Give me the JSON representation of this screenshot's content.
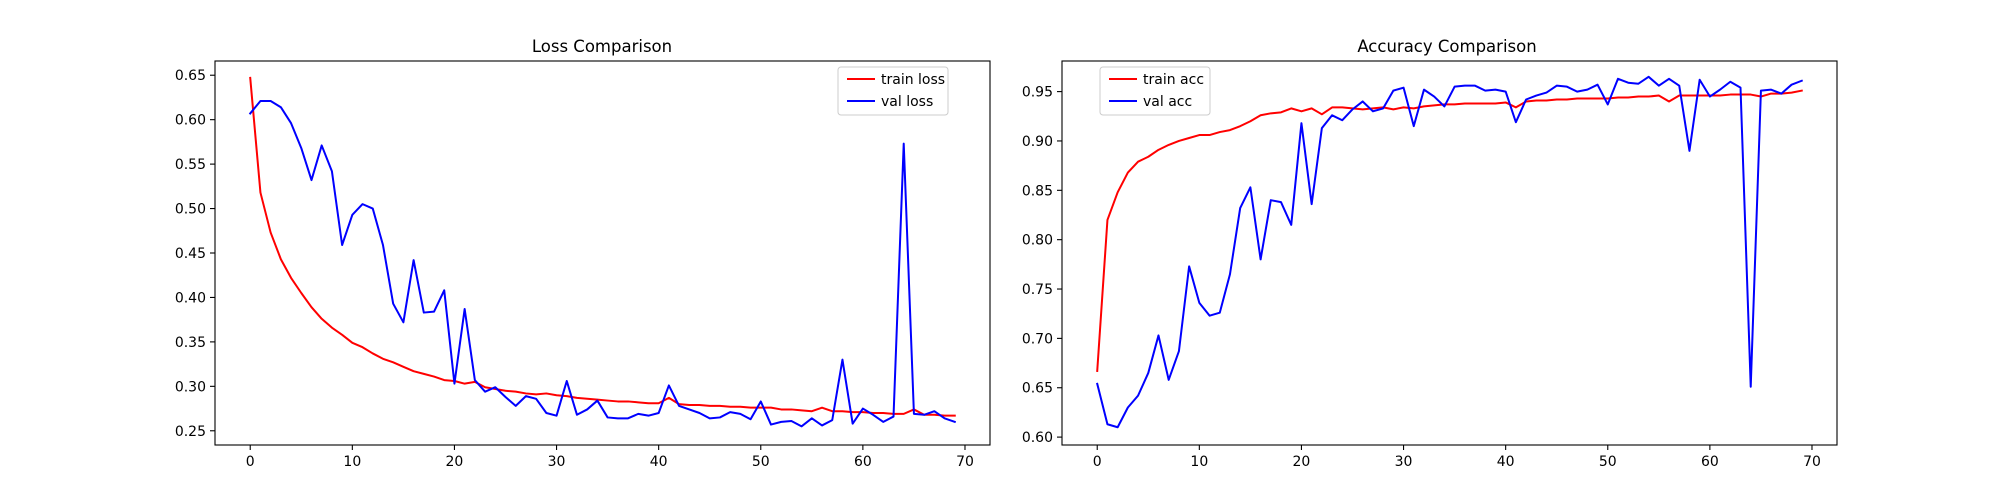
{
  "chart_data": [
    {
      "type": "line",
      "title": "Loss Comparison",
      "xlabel": "",
      "ylabel": "",
      "xlim": [
        -3.45,
        72.45
      ],
      "ylim": [
        0.234,
        0.666
      ],
      "xticks": [
        0,
        10,
        20,
        30,
        40,
        50,
        60,
        70
      ],
      "yticks": [
        0.25,
        0.3,
        0.35,
        0.4,
        0.45,
        0.5,
        0.55,
        0.6,
        0.65
      ],
      "ytick_decimals": 2,
      "legend": "top-right",
      "grid": false,
      "x": [
        0,
        1,
        2,
        3,
        4,
        5,
        6,
        7,
        8,
        9,
        10,
        11,
        12,
        13,
        14,
        15,
        16,
        17,
        18,
        19,
        20,
        21,
        22,
        23,
        24,
        25,
        26,
        27,
        28,
        29,
        30,
        31,
        32,
        33,
        34,
        35,
        36,
        37,
        38,
        39,
        40,
        41,
        42,
        43,
        44,
        45,
        46,
        47,
        48,
        49,
        50,
        51,
        52,
        53,
        54,
        55,
        56,
        57,
        58,
        59,
        60,
        61,
        62,
        63,
        64,
        65,
        66,
        67,
        68,
        69
      ],
      "series": [
        {
          "name": "train loss",
          "color": "#ff0000",
          "values": [
            0.647,
            0.518,
            0.473,
            0.443,
            0.422,
            0.405,
            0.389,
            0.376,
            0.366,
            0.358,
            0.349,
            0.344,
            0.337,
            0.331,
            0.327,
            0.322,
            0.317,
            0.314,
            0.311,
            0.307,
            0.306,
            0.303,
            0.305,
            0.299,
            0.297,
            0.295,
            0.294,
            0.292,
            0.291,
            0.292,
            0.29,
            0.289,
            0.287,
            0.286,
            0.285,
            0.284,
            0.283,
            0.283,
            0.282,
            0.281,
            0.281,
            0.287,
            0.28,
            0.279,
            0.279,
            0.278,
            0.278,
            0.277,
            0.277,
            0.276,
            0.276,
            0.276,
            0.274,
            0.274,
            0.273,
            0.272,
            0.276,
            0.272,
            0.272,
            0.271,
            0.271,
            0.27,
            0.27,
            0.269,
            0.269,
            0.274,
            0.268,
            0.268,
            0.267,
            0.267
          ]
        },
        {
          "name": "val loss",
          "color": "#0000ff",
          "values": [
            0.607,
            0.621,
            0.621,
            0.614,
            0.596,
            0.568,
            0.532,
            0.571,
            0.542,
            0.459,
            0.493,
            0.505,
            0.5,
            0.459,
            0.393,
            0.372,
            0.442,
            0.383,
            0.384,
            0.408,
            0.303,
            0.387,
            0.307,
            0.294,
            0.299,
            0.288,
            0.278,
            0.289,
            0.286,
            0.27,
            0.267,
            0.306,
            0.268,
            0.274,
            0.284,
            0.265,
            0.264,
            0.264,
            0.269,
            0.267,
            0.27,
            0.301,
            0.278,
            0.274,
            0.27,
            0.264,
            0.265,
            0.271,
            0.269,
            0.263,
            0.283,
            0.257,
            0.26,
            0.261,
            0.255,
            0.264,
            0.256,
            0.262,
            0.33,
            0.258,
            0.275,
            0.268,
            0.26,
            0.266,
            0.573,
            0.269,
            0.268,
            0.272,
            0.264,
            0.26
          ]
        }
      ]
    },
    {
      "type": "line",
      "title": "Accuracy Comparison",
      "xlabel": "",
      "ylabel": "",
      "xlim": [
        -3.45,
        72.45
      ],
      "ylim": [
        0.592,
        0.981
      ],
      "xticks": [
        0,
        10,
        20,
        30,
        40,
        50,
        60,
        70
      ],
      "yticks": [
        0.6,
        0.65,
        0.7,
        0.75,
        0.8,
        0.85,
        0.9,
        0.95
      ],
      "ytick_decimals": 2,
      "legend": "top-left",
      "grid": false,
      "x": [
        0,
        1,
        2,
        3,
        4,
        5,
        6,
        7,
        8,
        9,
        10,
        11,
        12,
        13,
        14,
        15,
        16,
        17,
        18,
        19,
        20,
        21,
        22,
        23,
        24,
        25,
        26,
        27,
        28,
        29,
        30,
        31,
        32,
        33,
        34,
        35,
        36,
        37,
        38,
        39,
        40,
        41,
        42,
        43,
        44,
        45,
        46,
        47,
        48,
        49,
        50,
        51,
        52,
        53,
        54,
        55,
        56,
        57,
        58,
        59,
        60,
        61,
        62,
        63,
        64,
        65,
        66,
        67,
        68,
        69
      ],
      "series": [
        {
          "name": "train acc",
          "color": "#ff0000",
          "values": [
            0.667,
            0.82,
            0.848,
            0.868,
            0.879,
            0.884,
            0.891,
            0.896,
            0.9,
            0.903,
            0.906,
            0.906,
            0.909,
            0.911,
            0.915,
            0.92,
            0.926,
            0.928,
            0.929,
            0.933,
            0.93,
            0.933,
            0.927,
            0.934,
            0.934,
            0.933,
            0.932,
            0.933,
            0.934,
            0.932,
            0.934,
            0.933,
            0.935,
            0.936,
            0.937,
            0.937,
            0.938,
            0.938,
            0.938,
            0.938,
            0.939,
            0.934,
            0.94,
            0.941,
            0.941,
            0.942,
            0.942,
            0.943,
            0.943,
            0.943,
            0.943,
            0.944,
            0.944,
            0.945,
            0.945,
            0.946,
            0.94,
            0.946,
            0.946,
            0.946,
            0.946,
            0.946,
            0.947,
            0.947,
            0.947,
            0.945,
            0.948,
            0.948,
            0.949,
            0.951
          ]
        },
        {
          "name": "val acc",
          "color": "#0000ff",
          "values": [
            0.654,
            0.613,
            0.61,
            0.63,
            0.642,
            0.665,
            0.703,
            0.658,
            0.687,
            0.773,
            0.736,
            0.723,
            0.726,
            0.765,
            0.832,
            0.853,
            0.78,
            0.84,
            0.838,
            0.815,
            0.918,
            0.836,
            0.913,
            0.926,
            0.921,
            0.932,
            0.94,
            0.93,
            0.933,
            0.951,
            0.954,
            0.915,
            0.952,
            0.945,
            0.935,
            0.955,
            0.956,
            0.956,
            0.951,
            0.952,
            0.95,
            0.919,
            0.942,
            0.946,
            0.949,
            0.956,
            0.955,
            0.95,
            0.952,
            0.957,
            0.937,
            0.963,
            0.959,
            0.958,
            0.965,
            0.956,
            0.963,
            0.956,
            0.89,
            0.962,
            0.945,
            0.952,
            0.96,
            0.954,
            0.651,
            0.951,
            0.952,
            0.948,
            0.957,
            0.961
          ]
        }
      ]
    }
  ]
}
